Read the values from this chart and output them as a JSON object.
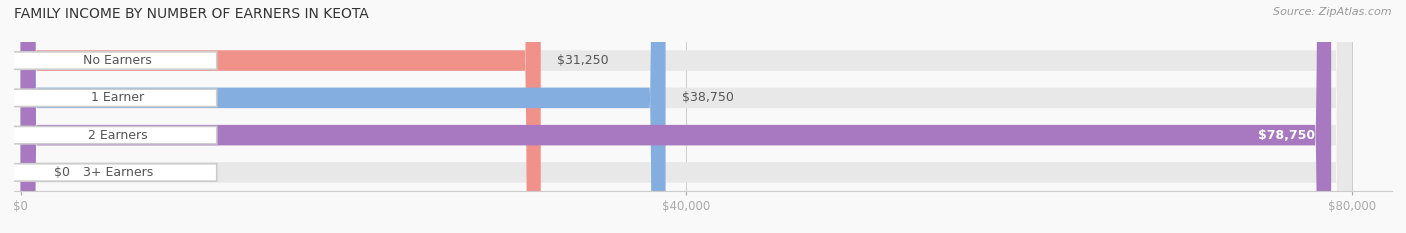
{
  "title": "FAMILY INCOME BY NUMBER OF EARNERS IN KEOTA",
  "source": "Source: ZipAtlas.com",
  "categories": [
    "No Earners",
    "1 Earner",
    "2 Earners",
    "3+ Earners"
  ],
  "values": [
    31250,
    38750,
    78750,
    0
  ],
  "bar_colors": [
    "#f0918a",
    "#85aee0",
    "#a878c0",
    "#5ecece"
  ],
  "bar_bg_color": "#eeeeee",
  "max_value": 80000,
  "xticks": [
    0,
    40000,
    80000
  ],
  "xtick_labels": [
    "$0",
    "$40,000",
    "$80,000"
  ],
  "value_labels": [
    "$31,250",
    "$38,750",
    "$78,750",
    "$0"
  ],
  "background_color": "#f9f9f9",
  "title_fontsize": 10,
  "label_fontsize": 9,
  "tick_fontsize": 8.5,
  "source_fontsize": 8
}
